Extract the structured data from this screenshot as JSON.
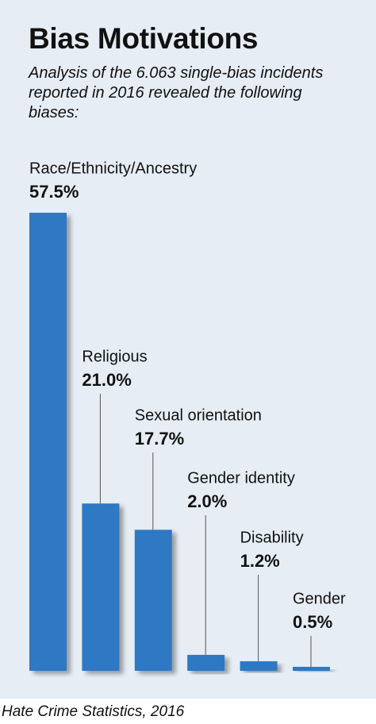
{
  "chart_data": {
    "type": "bar",
    "title": "Bias Motivations",
    "subtitle": "Analysis of the 6.063 single-bias incidents reported in 2016 revealed the following biases:",
    "categories": [
      "Race/Ethnicity/Ancestry",
      "Religious",
      "Sexual orientation",
      "Gender identity",
      "Disability",
      "Gender"
    ],
    "values": [
      57.5,
      21.0,
      17.7,
      2.0,
      1.2,
      0.5
    ],
    "value_labels": [
      "57.5%",
      "21.0%",
      "17.7%",
      "2.0%",
      "1.2%",
      "0.5%"
    ],
    "color": "#2f78c4",
    "source": "Hate Crime Statistics, 2016"
  }
}
